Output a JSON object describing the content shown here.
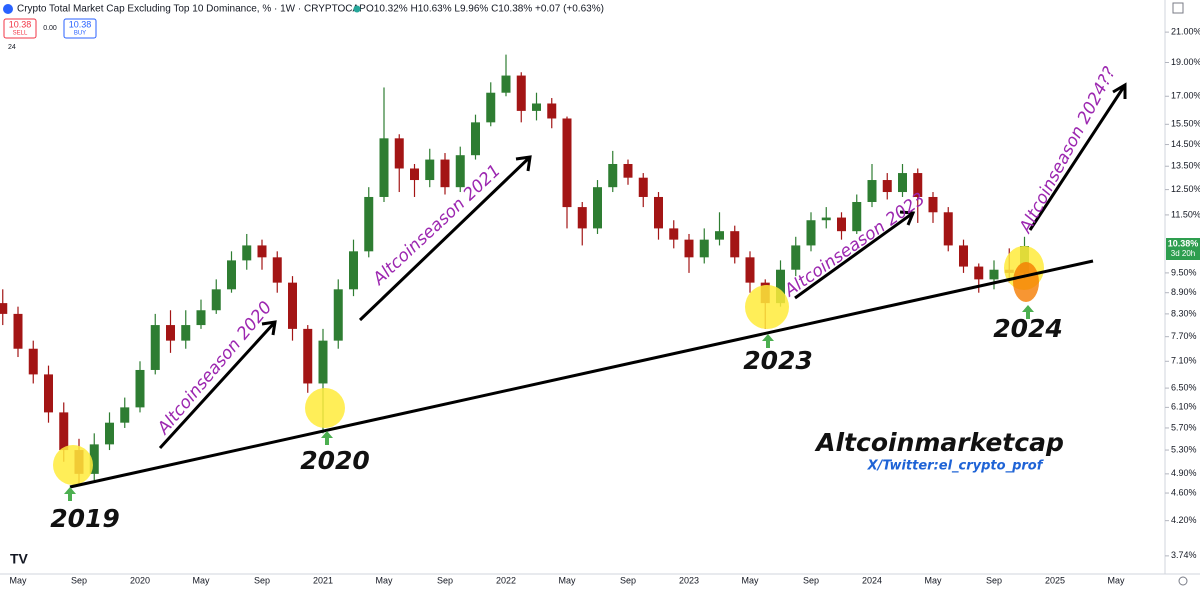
{
  "header": {
    "title": "Crypto Total Market Cap Excluding Top 10 Dominance, % · 1W · CRYPTOCAP",
    "ohlc": "O10.32% H10.63% L9.96% C10.38% +0.07 (+0.63%)",
    "sell_price": "10.38",
    "sell_label": "SELL",
    "spread": "0.00",
    "buy_price": "10.38",
    "buy_label": "BUY",
    "indicator": "24"
  },
  "price_tag": {
    "price": "10.38%",
    "countdown": "3d 20h"
  },
  "chart_data": {
    "type": "candlestick",
    "log_scale": true,
    "up_color": "#2e7d32",
    "down_color": "#a31515",
    "categories": [
      null,
      "May",
      null,
      null,
      null,
      "Sep",
      null,
      null,
      null,
      "2020",
      null,
      null,
      null,
      "May",
      null,
      null,
      null,
      "Sep",
      null,
      null,
      null,
      "2021",
      null,
      null,
      null,
      "May",
      null,
      null,
      null,
      "Sep",
      null,
      null,
      null,
      "2022",
      null,
      null,
      null,
      "May",
      null,
      null,
      null,
      "Sep",
      null,
      null,
      null,
      "2023",
      null,
      null,
      null,
      "May",
      null,
      null,
      null,
      "Sep",
      null,
      null,
      null,
      "2024",
      null,
      null,
      null,
      "May",
      null,
      null,
      null,
      "Sep",
      null,
      null,
      null,
      "2025",
      null,
      null,
      null,
      "May"
    ],
    "open": [
      8.6,
      8.3,
      7.4,
      6.8,
      6.0,
      5.3,
      4.9,
      5.4,
      5.8,
      6.1,
      6.9,
      8.0,
      7.6,
      8.0,
      8.4,
      9.0,
      9.9,
      10.4,
      10.0,
      9.2,
      7.9,
      6.6,
      7.6,
      9.0,
      10.2,
      12.2,
      14.8,
      13.4,
      12.9,
      13.8,
      12.6,
      14.0,
      15.6,
      17.2,
      18.2,
      16.2,
      16.6,
      15.8,
      11.8,
      11.0,
      12.6,
      13.6,
      13.0,
      12.2,
      11.0,
      10.6,
      10.0,
      10.6,
      10.9,
      10.0,
      9.2,
      8.6,
      9.6,
      10.4,
      11.3,
      11.4,
      10.9,
      12.0,
      12.9,
      12.4,
      13.2,
      12.2,
      11.6,
      10.4,
      9.7,
      9.3,
      9.6,
      9.5,
      null,
      null,
      null,
      null,
      null,
      null
    ],
    "high": [
      9.0,
      8.5,
      7.6,
      7.0,
      6.2,
      5.5,
      5.6,
      6.0,
      6.3,
      7.1,
      8.3,
      8.4,
      8.4,
      8.7,
      9.3,
      10.2,
      10.8,
      10.6,
      10.2,
      9.4,
      8.0,
      7.9,
      9.3,
      10.6,
      12.6,
      17.5,
      15.0,
      13.6,
      14.3,
      14.1,
      14.4,
      16.0,
      17.8,
      19.5,
      18.4,
      17.2,
      16.9,
      15.9,
      12.0,
      12.9,
      14.2,
      13.8,
      13.2,
      12.4,
      11.3,
      10.8,
      11.0,
      11.6,
      11.1,
      10.2,
      9.3,
      9.9,
      10.7,
      11.6,
      11.8,
      11.6,
      12.3,
      13.6,
      13.2,
      13.6,
      13.4,
      12.4,
      11.8,
      10.6,
      9.8,
      9.9,
      10.3,
      10.7,
      null,
      null,
      null,
      null,
      null,
      null
    ],
    "low": [
      8.0,
      7.2,
      6.6,
      5.8,
      5.1,
      4.7,
      4.8,
      5.3,
      5.7,
      6.0,
      6.8,
      7.3,
      7.4,
      7.9,
      8.3,
      8.9,
      9.6,
      9.6,
      8.9,
      7.6,
      6.4,
      5.6,
      7.4,
      8.8,
      10.0,
      12.0,
      12.4,
      12.2,
      12.6,
      12.3,
      12.4,
      13.8,
      15.4,
      17.0,
      15.6,
      15.7,
      15.3,
      11.0,
      10.4,
      10.8,
      12.4,
      12.7,
      11.8,
      10.6,
      10.3,
      9.5,
      9.8,
      10.4,
      9.8,
      8.9,
      7.9,
      8.5,
      9.4,
      10.2,
      11.0,
      10.6,
      10.8,
      11.8,
      12.1,
      12.2,
      11.2,
      11.2,
      10.2,
      9.5,
      8.9,
      9.0,
      9.2,
      9.3,
      null,
      null,
      null,
      null,
      null,
      null
    ],
    "close": [
      8.3,
      7.4,
      6.8,
      6.0,
      5.3,
      4.9,
      5.4,
      5.8,
      6.1,
      6.9,
      8.0,
      7.6,
      8.0,
      8.4,
      9.0,
      9.9,
      10.4,
      10.0,
      9.2,
      7.9,
      6.6,
      7.6,
      9.0,
      10.2,
      12.2,
      14.8,
      13.4,
      12.9,
      13.8,
      12.6,
      14.0,
      15.6,
      17.2,
      18.2,
      16.2,
      16.6,
      15.8,
      11.8,
      11.0,
      12.6,
      13.6,
      13.0,
      12.2,
      11.0,
      10.6,
      10.0,
      10.6,
      10.9,
      10.0,
      9.2,
      8.6,
      9.6,
      10.4,
      11.3,
      11.4,
      10.9,
      12.0,
      12.9,
      12.4,
      13.2,
      12.2,
      11.6,
      10.4,
      9.7,
      9.3,
      9.6,
      9.5,
      10.38,
      null,
      null,
      null,
      null,
      null,
      null
    ],
    "ylim": [
      3.5,
      22
    ],
    "yticks": [
      {
        "value": 3.74,
        "label": "3.74%"
      },
      {
        "value": 4.2,
        "label": "4.20%"
      },
      {
        "value": 4.6,
        "label": "4.60%"
      },
      {
        "value": 4.9,
        "label": "4.90%"
      },
      {
        "value": 5.3,
        "label": "5.30%"
      },
      {
        "value": 5.7,
        "label": "5.70%"
      },
      {
        "value": 6.1,
        "label": "6.10%"
      },
      {
        "value": 6.5,
        "label": "6.50%"
      },
      {
        "value": 7.1,
        "label": "7.10%"
      },
      {
        "value": 7.7,
        "label": "7.70%"
      },
      {
        "value": 8.3,
        "label": "8.30%"
      },
      {
        "value": 8.9,
        "label": "8.90%"
      },
      {
        "value": 9.5,
        "label": "9.50%"
      },
      {
        "value": 11.5,
        "label": "11.50%"
      },
      {
        "value": 12.5,
        "label": "12.50%"
      },
      {
        "value": 13.5,
        "label": "13.50%"
      },
      {
        "value": 14.5,
        "label": "14.50%"
      },
      {
        "value": 15.5,
        "label": "15.50%"
      },
      {
        "value": 17,
        "label": "17.00%"
      },
      {
        "value": 19,
        "label": "19.00%"
      },
      {
        "value": 21,
        "label": "21.00%"
      }
    ],
    "annotations": [
      "Altcoinseason 2020",
      "Altcoinseason 2021",
      "Altcoinseason 2023",
      "Altcoinseason 2024??",
      "2019",
      "2020",
      "2023",
      "2024",
      "Altcoinmarketcap",
      "X/Twitter:el_crypto_prof"
    ]
  }
}
